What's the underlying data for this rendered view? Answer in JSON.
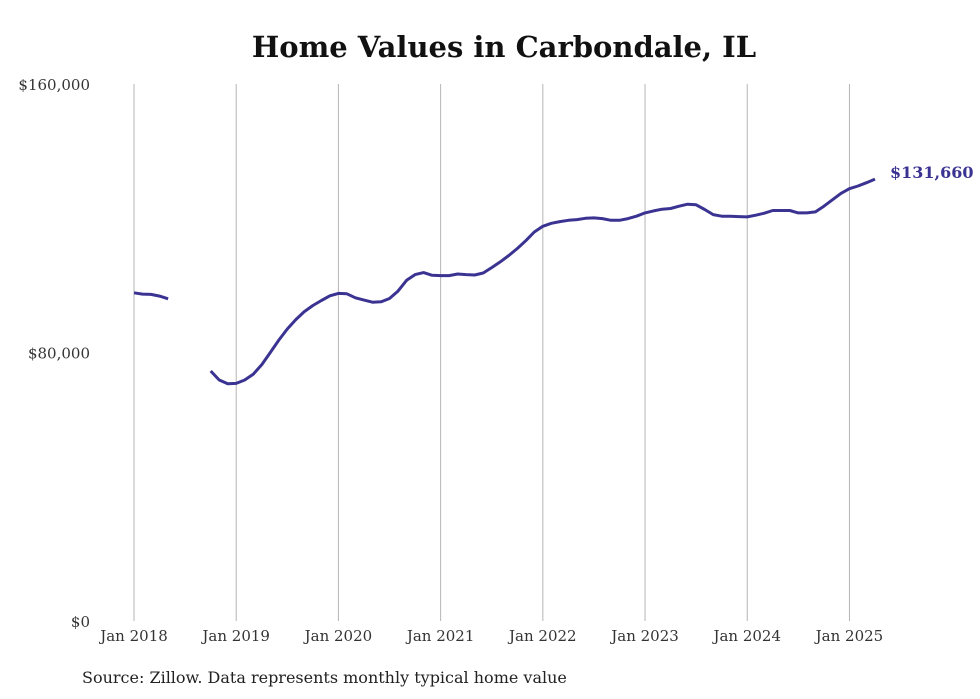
{
  "chart_data": {
    "type": "line",
    "title": "Home Values in Carbondale, IL",
    "source": "Source: Zillow. Data represents monthly typical home value",
    "ylim": [
      0,
      160000
    ],
    "y_ticks": [
      0,
      80000,
      160000
    ],
    "y_tick_labels": [
      "$0",
      "$80,000",
      "$160,000"
    ],
    "x_ticks": [
      "2018-01",
      "2019-01",
      "2020-01",
      "2021-01",
      "2022-01",
      "2023-01",
      "2024-01",
      "2025-01"
    ],
    "x_tick_labels": [
      "Jan 2018",
      "Jan 2019",
      "Jan 2020",
      "Jan 2021",
      "Jan 2022",
      "Jan 2023",
      "Jan 2024",
      "Jan 2025"
    ],
    "grid": "vertical",
    "line_color": "#3b3392",
    "end_label": "$131,660",
    "series": [
      {
        "values": [
          [
            "2018-01",
            97800
          ],
          [
            "2018-02",
            97400
          ],
          [
            "2018-03",
            97300
          ],
          [
            "2018-04",
            96800
          ],
          [
            "2018-05",
            96000
          ],
          [
            "2018-06",
            null
          ],
          [
            "2018-07",
            null
          ],
          [
            "2018-08",
            null
          ],
          [
            "2018-09",
            null
          ],
          [
            "2018-10",
            74500
          ],
          [
            "2018-11",
            71800
          ],
          [
            "2018-12",
            70700
          ],
          [
            "2019-01",
            70800
          ],
          [
            "2019-02",
            71800
          ],
          [
            "2019-03",
            73500
          ],
          [
            "2019-04",
            76400
          ],
          [
            "2019-05",
            80000
          ],
          [
            "2019-06",
            83700
          ],
          [
            "2019-07",
            87000
          ],
          [
            "2019-08",
            89800
          ],
          [
            "2019-09",
            92200
          ],
          [
            "2019-10",
            94000
          ],
          [
            "2019-11",
            95500
          ],
          [
            "2019-12",
            96900
          ],
          [
            "2020-01",
            97600
          ],
          [
            "2020-02",
            97500
          ],
          [
            "2020-03",
            96300
          ],
          [
            "2020-04",
            95600
          ],
          [
            "2020-05",
            95000
          ],
          [
            "2020-06",
            95100
          ],
          [
            "2020-07",
            96100
          ],
          [
            "2020-08",
            98300
          ],
          [
            "2020-09",
            101500
          ],
          [
            "2020-10",
            103200
          ],
          [
            "2020-11",
            103800
          ],
          [
            "2020-12",
            103000
          ],
          [
            "2021-01",
            102900
          ],
          [
            "2021-02",
            102900
          ],
          [
            "2021-03",
            103400
          ],
          [
            "2021-04",
            103200
          ],
          [
            "2021-05",
            103100
          ],
          [
            "2021-06",
            103700
          ],
          [
            "2021-07",
            105300
          ],
          [
            "2021-08",
            107000
          ],
          [
            "2021-09",
            108900
          ],
          [
            "2021-10",
            111000
          ],
          [
            "2021-11",
            113300
          ],
          [
            "2021-12",
            115900
          ],
          [
            "2022-01",
            117600
          ],
          [
            "2022-02",
            118500
          ],
          [
            "2022-03",
            119000
          ],
          [
            "2022-04",
            119400
          ],
          [
            "2022-05",
            119600
          ],
          [
            "2022-06",
            120000
          ],
          [
            "2022-07",
            120100
          ],
          [
            "2022-08",
            119900
          ],
          [
            "2022-09",
            119400
          ],
          [
            "2022-10",
            119400
          ],
          [
            "2022-11",
            119900
          ],
          [
            "2022-12",
            120600
          ],
          [
            "2023-01",
            121600
          ],
          [
            "2023-02",
            122200
          ],
          [
            "2023-03",
            122700
          ],
          [
            "2023-04",
            122900
          ],
          [
            "2023-05",
            123600
          ],
          [
            "2023-06",
            124200
          ],
          [
            "2023-07",
            124000
          ],
          [
            "2023-08",
            122600
          ],
          [
            "2023-09",
            121100
          ],
          [
            "2023-10",
            120600
          ],
          [
            "2023-11",
            120600
          ],
          [
            "2023-12",
            120500
          ],
          [
            "2024-01",
            120400
          ],
          [
            "2024-02",
            120900
          ],
          [
            "2024-03",
            121500
          ],
          [
            "2024-04",
            122300
          ],
          [
            "2024-05",
            122300
          ],
          [
            "2024-06",
            122300
          ],
          [
            "2024-07",
            121600
          ],
          [
            "2024-08",
            121600
          ],
          [
            "2024-09",
            121900
          ],
          [
            "2024-10",
            123600
          ],
          [
            "2024-11",
            125500
          ],
          [
            "2024-12",
            127400
          ],
          [
            "2025-01",
            128800
          ],
          [
            "2025-02",
            129600
          ],
          [
            "2025-03",
            130600
          ],
          [
            "2025-04",
            131660
          ]
        ]
      }
    ]
  }
}
